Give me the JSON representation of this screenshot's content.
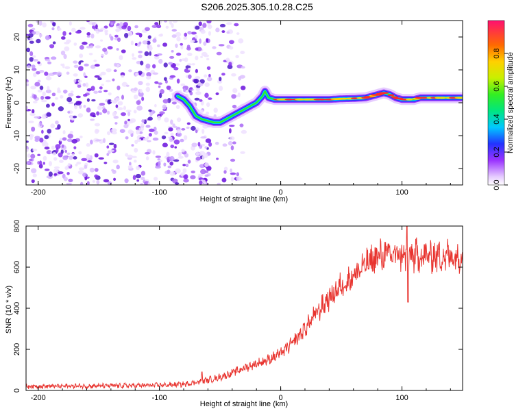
{
  "title": "S206.2025.305.10.28.C25",
  "colors": {
    "snr_line": "#e8342f",
    "axis": "#000000",
    "scatter": "#9933ee"
  },
  "chart_data": [
    {
      "type": "heatmap",
      "name": "spectrogram",
      "xlabel": "Height of straight line (km)",
      "ylabel": "Frequency (Hz)",
      "xlim": [
        -210,
        150
      ],
      "ylim": [
        -25,
        25
      ],
      "xticks": [
        -200,
        -100,
        0,
        100
      ],
      "yticks": [
        -20,
        -10,
        0,
        10,
        20
      ],
      "colorbar": {
        "label": "Normalized spectral amplitude",
        "range": [
          0,
          1
        ],
        "ticks": [
          0.0,
          0.2,
          0.4,
          0.6,
          0.8
        ]
      },
      "ridge": {
        "x": [
          -85,
          -80,
          -75,
          -70,
          -65,
          -60,
          -55,
          -50,
          -45,
          -40,
          -35,
          -30,
          -25,
          -20,
          -15,
          -13,
          -10,
          -5,
          0,
          10,
          20,
          30,
          40,
          50,
          60,
          70,
          75,
          80,
          85,
          90,
          95,
          100,
          105,
          110,
          115,
          120,
          130,
          140,
          150
        ],
        "y": [
          2,
          1,
          -1,
          -4,
          -5,
          -5.5,
          -6,
          -6,
          -5,
          -4,
          -3,
          -2,
          -1,
          0,
          2,
          3.5,
          1.5,
          1,
          1,
          1,
          1,
          1,
          1,
          1.2,
          1.3,
          1.5,
          2,
          2.5,
          3,
          2.5,
          1.5,
          1,
          1,
          1,
          1.5,
          1.5,
          1.5,
          1.5,
          1.5
        ]
      }
    },
    {
      "type": "line",
      "name": "snr",
      "xlabel": "Height of straight line (km)",
      "ylabel": "SNR (10 * v/v)",
      "xlim": [
        -210,
        150
      ],
      "ylim": [
        0,
        800
      ],
      "xticks": [
        -200,
        -100,
        0,
        100
      ],
      "yticks": [
        0,
        200,
        400,
        600,
        800
      ],
      "envelope": {
        "x": [
          -210,
          -150,
          -100,
          -80,
          -70,
          -60,
          -50,
          -40,
          -30,
          -20,
          -10,
          0,
          10,
          20,
          30,
          40,
          50,
          60,
          70,
          80,
          90,
          100,
          110,
          120,
          130,
          140,
          150
        ],
        "y": [
          20,
          22,
          25,
          30,
          40,
          50,
          65,
          85,
          110,
          130,
          150,
          180,
          230,
          300,
          380,
          450,
          510,
          560,
          610,
          650,
          660,
          660,
          655,
          655,
          655,
          655,
          650
        ]
      },
      "spikes": [
        {
          "x": 104,
          "y": 800
        },
        {
          "x": 105,
          "y": 430
        },
        {
          "x": -65,
          "y": 90
        }
      ]
    }
  ]
}
